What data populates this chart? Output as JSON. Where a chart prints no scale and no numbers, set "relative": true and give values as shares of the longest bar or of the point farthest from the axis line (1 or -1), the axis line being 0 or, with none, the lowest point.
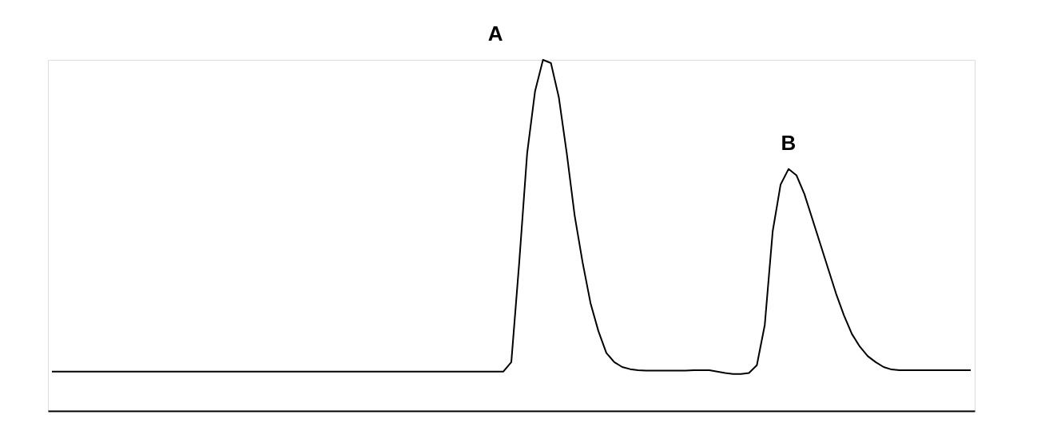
{
  "chart_data": {
    "type": "line",
    "relative": true,
    "color": "#000000",
    "categories": [
      null,
      null,
      null,
      null,
      null,
      null,
      null,
      null,
      null,
      null,
      null,
      null,
      null,
      null,
      null,
      null,
      null,
      null,
      null,
      null,
      null,
      null,
      null,
      null,
      null,
      null,
      null,
      null,
      null,
      null,
      null,
      null,
      null,
      null,
      null,
      null,
      null,
      null,
      null,
      null,
      null,
      null,
      null,
      null,
      null,
      null,
      null,
      null,
      null,
      null,
      null,
      null,
      null,
      null,
      null,
      null,
      null,
      null,
      null,
      null,
      null,
      null,
      null,
      null,
      null,
      null,
      null,
      null,
      null,
      null,
      null,
      null,
      null,
      null,
      null,
      null,
      null,
      null,
      null,
      null,
      null,
      null,
      null,
      null,
      null,
      null,
      null,
      null,
      null,
      null,
      null,
      null,
      null,
      null,
      null,
      null,
      null,
      null,
      null,
      null,
      null,
      null,
      null,
      null,
      null,
      null,
      null,
      null,
      null,
      null,
      null,
      null,
      null,
      null,
      null,
      null,
      null
    ],
    "values": [
      0.112,
      0.112,
      0.112,
      0.112,
      0.112,
      0.112,
      0.112,
      0.112,
      0.112,
      0.112,
      0.112,
      0.112,
      0.112,
      0.112,
      0.112,
      0.112,
      0.112,
      0.112,
      0.112,
      0.112,
      0.112,
      0.112,
      0.112,
      0.112,
      0.112,
      0.112,
      0.112,
      0.112,
      0.112,
      0.112,
      0.112,
      0.112,
      0.112,
      0.112,
      0.112,
      0.112,
      0.112,
      0.112,
      0.112,
      0.112,
      0.112,
      0.112,
      0.112,
      0.112,
      0.112,
      0.112,
      0.112,
      0.112,
      0.112,
      0.112,
      0.112,
      0.112,
      0.112,
      0.112,
      0.112,
      0.112,
      0.112,
      0.112,
      0.139,
      0.423,
      0.734,
      0.911,
      1,
      0.991,
      0.893,
      0.734,
      0.556,
      0.423,
      0.307,
      0.227,
      0.165,
      0.139,
      0.125,
      0.119,
      0.116,
      0.115,
      0.115,
      0.115,
      0.115,
      0.115,
      0.115,
      0.116,
      0.116,
      0.116,
      0.112,
      0.108,
      0.105,
      0.105,
      0.108,
      0.13,
      0.245,
      0.512,
      0.645,
      0.689,
      0.671,
      0.618,
      0.547,
      0.476,
      0.405,
      0.334,
      0.272,
      0.219,
      0.183,
      0.156,
      0.139,
      0.125,
      0.118,
      0.116,
      0.116,
      0.116,
      0.116,
      0.116,
      0.116,
      0.116,
      0.116,
      0.116,
      0.116
    ],
    "annotations": [
      "A",
      "B"
    ],
    "grid": false,
    "marker": "none",
    "line_style": "solid"
  }
}
